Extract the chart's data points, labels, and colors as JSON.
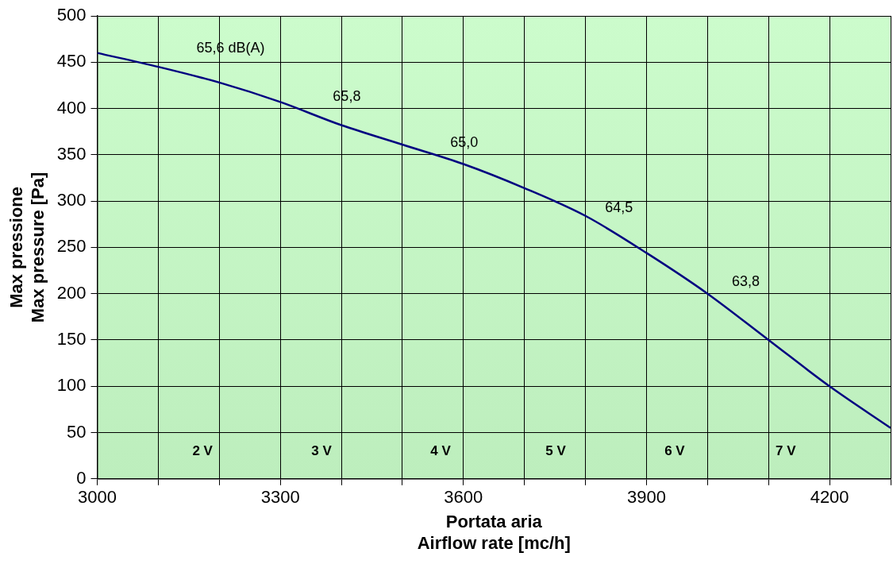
{
  "chart_data": {
    "type": "line",
    "xlabel": "Portata aria\nAirflow rate [mc/h]",
    "ylabel": "Max pressione\nMax pressure [Pa]",
    "x": [
      3000,
      3100,
      3200,
      3300,
      3400,
      3500,
      3600,
      3700,
      3800,
      3900,
      4000,
      4100,
      4200,
      4300
    ],
    "series": [
      {
        "color": "#000080",
        "values": [
          460,
          445,
          428,
          407,
          382,
          361,
          340,
          314,
          284,
          244,
          200,
          150,
          100,
          55
        ]
      }
    ],
    "xlim": [
      3000,
      4300
    ],
    "xticks": [
      3000,
      {
        "value": 3100,
        "label": null
      },
      {
        "value": 3200,
        "label": null
      },
      3300,
      {
        "value": 3400,
        "label": null
      },
      {
        "value": 3500,
        "label": null
      },
      3600,
      {
        "value": 3700,
        "label": null
      },
      {
        "value": 3800,
        "label": null
      },
      3900,
      {
        "value": 4000,
        "label": null
      },
      {
        "value": 4100,
        "label": null
      },
      4200,
      {
        "value": 4300,
        "label": null
      }
    ],
    "ylim": [
      0,
      500
    ],
    "yticks": [
      0,
      50,
      100,
      150,
      200,
      250,
      300,
      350,
      400,
      450,
      500
    ],
    "grid": true,
    "legend": false,
    "marker": "none",
    "line_style": "solid",
    "annotations": [
      "65,6 dB(A)",
      "65,8",
      "65,0",
      "64,5",
      "63,8",
      "2 V",
      "3 V",
      "4 V",
      "5 V",
      "6 V",
      "7 V"
    ]
  }
}
